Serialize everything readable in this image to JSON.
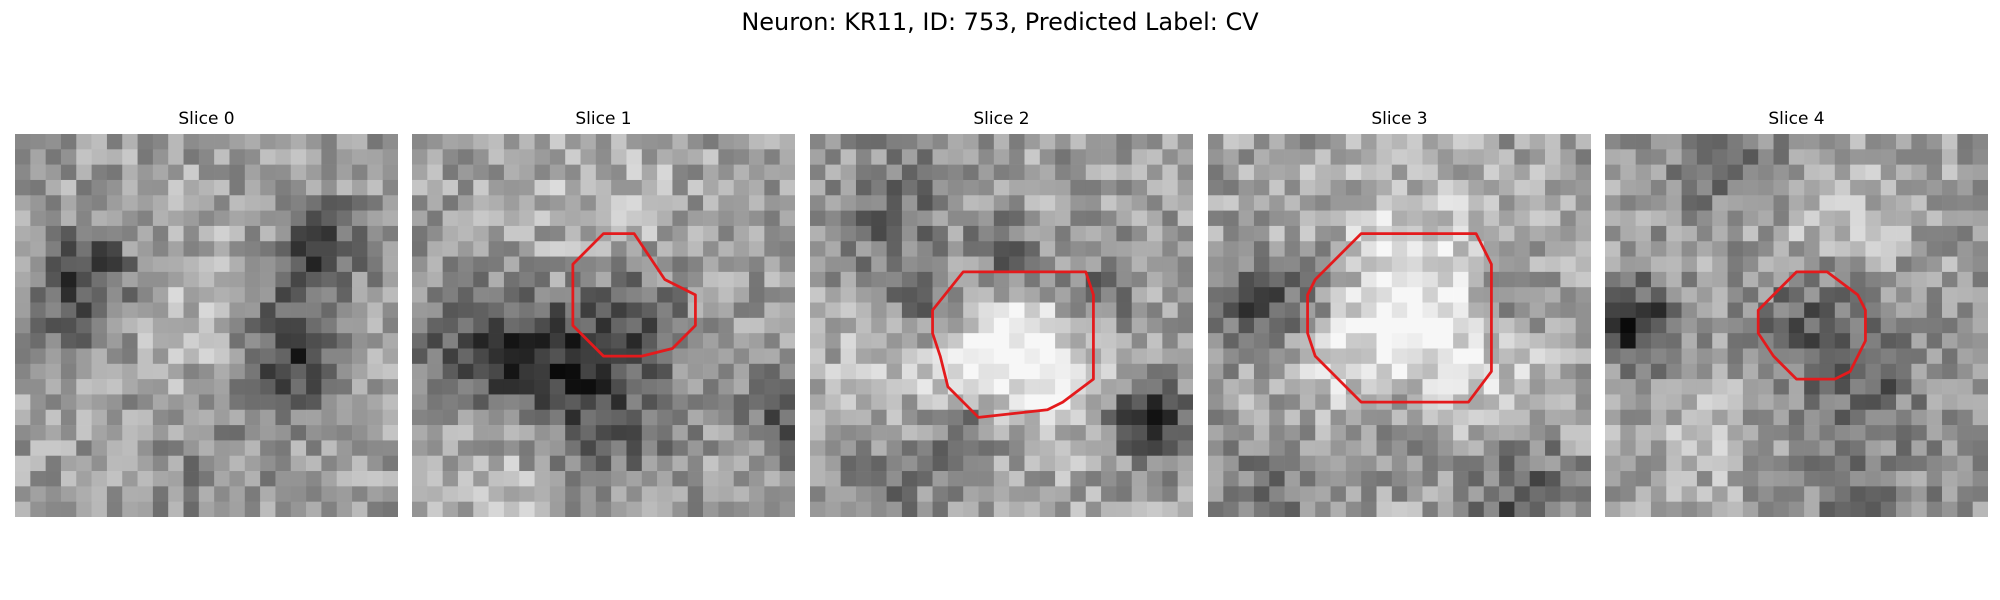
{
  "figure": {
    "title": "Neuron: KR11, ID: 753, Predicted Label: CV",
    "contour_color": "#e41a1c",
    "colormap": "grayscale",
    "grid_size": 25
  },
  "slices": [
    {
      "title": "Slice 0",
      "has_contour": false
    },
    {
      "title": "Slice 1",
      "has_contour": true
    },
    {
      "title": "Slice 2",
      "has_contour": true
    },
    {
      "title": "Slice 3",
      "has_contour": true
    },
    {
      "title": "Slice 4",
      "has_contour": true
    }
  ]
}
